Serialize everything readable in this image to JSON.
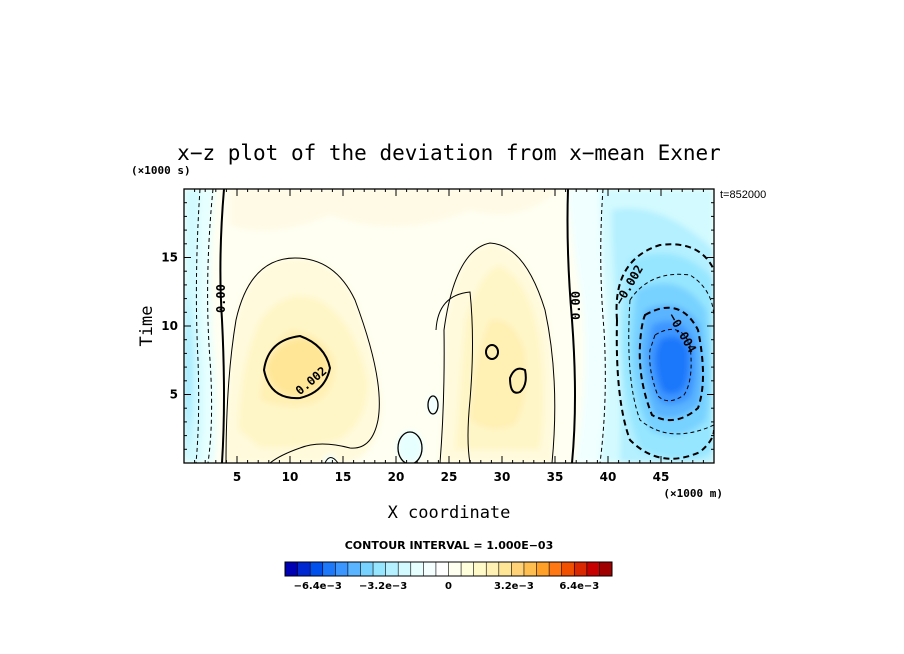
{
  "chart_data": {
    "type": "heatmap",
    "title": "x−z plot of the deviation from x−mean Exner",
    "xlabel": "X coordinate",
    "ylabel": "Time",
    "x_unit": "(×1000 m)",
    "y_unit": "(×1000 s)",
    "time_stamp": "t=852000",
    "x_ticks": [
      5,
      10,
      15,
      20,
      25,
      30,
      35,
      40,
      45
    ],
    "y_ticks": [
      5,
      10,
      15
    ],
    "xlim": [
      0,
      50
    ],
    "ylim": [
      0,
      20
    ],
    "contour_interval_text": "CONTOUR INTERVAL = 1.000E−03",
    "contour_labels": [
      {
        "text": "0.00",
        "x": 3.5,
        "y": 12.0
      },
      {
        "text": "0.002",
        "x": 12.0,
        "y": 6.0
      },
      {
        "text": "0.00",
        "x": 37.0,
        "y": 11.5
      },
      {
        "text": "−0.002",
        "x": 42.0,
        "y": 13.0
      },
      {
        "text": "−0.004",
        "x": 47.0,
        "y": 9.5
      }
    ],
    "extrema": [
      {
        "x": 10.0,
        "y": 7.0,
        "value": 0.0024
      },
      {
        "x": 30.5,
        "y": 8.0,
        "value": 0.0022
      },
      {
        "x": 45.8,
        "y": 7.0,
        "value": -0.0058
      },
      {
        "x": 0.5,
        "y": 8.0,
        "value": -0.002
      },
      {
        "x": 21.5,
        "y": 1.0,
        "value": -0.0003
      }
    ],
    "colorbar": {
      "min": -0.008,
      "max": 0.008,
      "ticks": [
        "−6.4e−3",
        "−3.2e−3",
        "0",
        "3.2e−3",
        "6.4e−3"
      ],
      "tick_values": [
        -0.0064,
        -0.0032,
        0,
        0.0032,
        0.0064
      ],
      "colors": [
        "#0000b4",
        "#0028d2",
        "#0050ee",
        "#1e78fa",
        "#3c96ff",
        "#5ab4ff",
        "#78d2ff",
        "#96e6ff",
        "#b4f0ff",
        "#d2faff",
        "#e6ffff",
        "#f5ffff",
        "#ffffff",
        "#fffff0",
        "#ffffdc",
        "#fffac8",
        "#fff0b4",
        "#ffe696",
        "#ffd278",
        "#ffbe50",
        "#ffa028",
        "#ff7814",
        "#f05000",
        "#dc2800",
        "#c80000",
        "#a00000"
      ]
    }
  }
}
